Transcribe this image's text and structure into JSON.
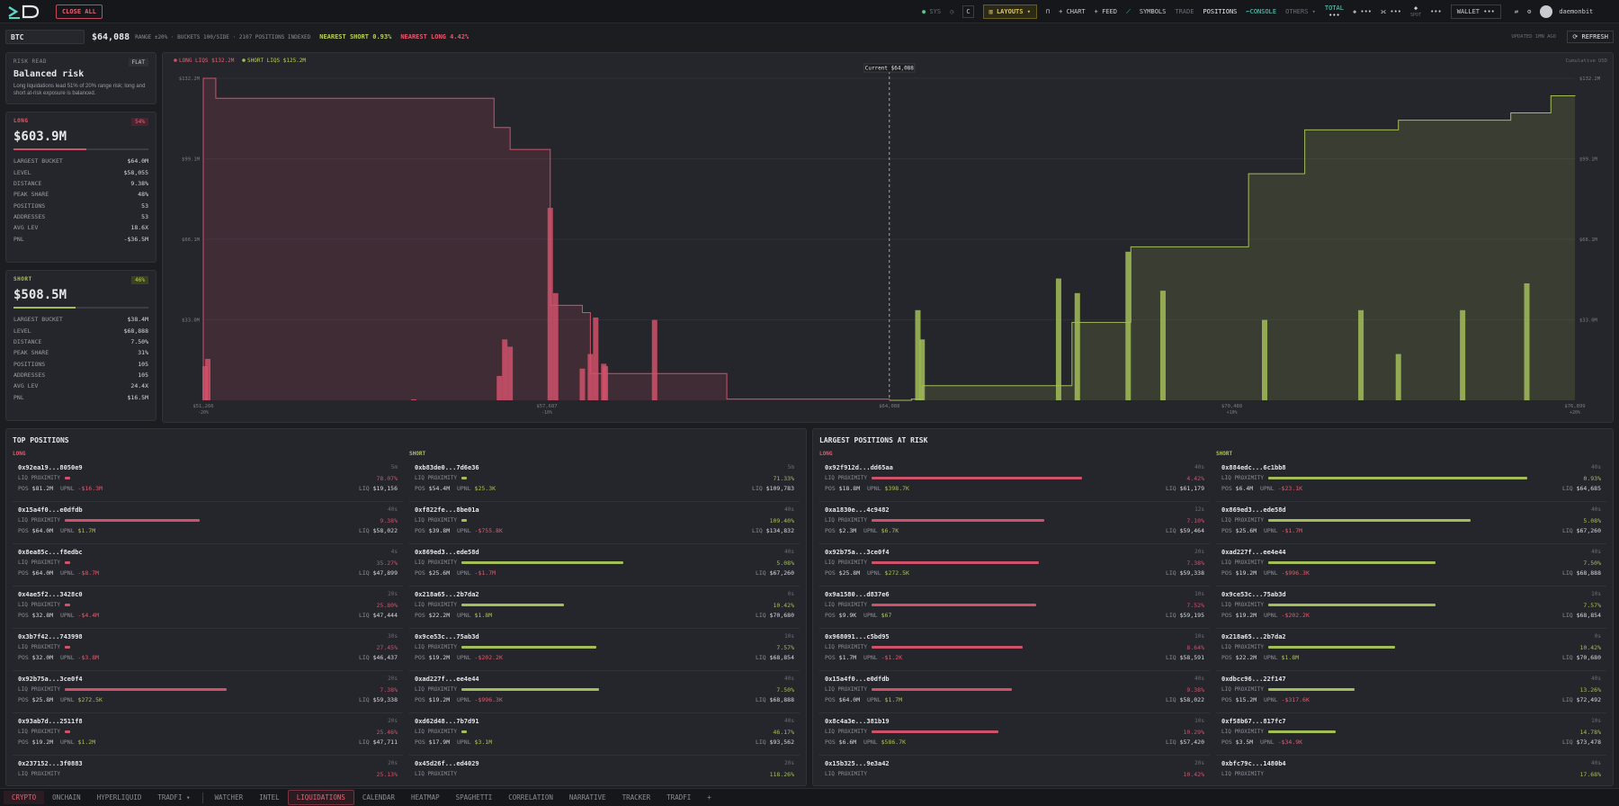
{
  "topbar": {
    "close_all": "CLOSE ALL",
    "sys": "SYS",
    "layouts": "LAYOUTS",
    "chart": "+ CHART",
    "feed": "+ FEED",
    "symbols": "SYMBOLS",
    "trade": "TRADE",
    "positions": "POSITIONS",
    "console": "CONSOLE",
    "others": "OTHERS",
    "total": "TOTAL",
    "total_val": "•••",
    "val_a": "•••",
    "val_b": "•••",
    "spot": "SPOT",
    "wallet": "WALLET •••",
    "user": "daemonbit"
  },
  "symbar": {
    "symbol": "BTC",
    "price": "$64,088",
    "info": "RANGE ±20% · BUCKETS 100/SIDE · 2107 POSITIONS INDEXED",
    "nearest_short": "NEAREST SHORT 0.93%",
    "nearest_long": "NEAREST LONG 4.42%",
    "updated": "UPDATED 1MN AGO",
    "refresh": "REFRESH"
  },
  "risk": {
    "label": "RISK READ",
    "flat": "FLAT",
    "title": "Balanced risk",
    "desc": "Long liquidations lead 51% of 20% range risk; long and short at-risk exposure is balanced."
  },
  "long": {
    "label": "LONG",
    "share": "54%",
    "total": "$603.9M",
    "rows": [
      [
        "LARGEST BUCKET",
        "$64.0M"
      ],
      [
        "LEVEL",
        "$58,055"
      ],
      [
        "DISTANCE",
        "9.38%"
      ],
      [
        "PEAK SHARE",
        "48%"
      ],
      [
        "POSITIONS",
        "53"
      ],
      [
        "ADDRESSES",
        "53"
      ],
      [
        "AVG LEV",
        "18.6X"
      ],
      [
        "PNL",
        "-$36.5M"
      ]
    ]
  },
  "short": {
    "label": "SHORT",
    "share": "46%",
    "total": "$508.5M",
    "rows": [
      [
        "LARGEST BUCKET",
        "$38.4M"
      ],
      [
        "LEVEL",
        "$68,888"
      ],
      [
        "DISTANCE",
        "7.50%"
      ],
      [
        "PEAK SHARE",
        "31%"
      ],
      [
        "POSITIONS",
        "105"
      ],
      [
        "ADDRESSES",
        "105"
      ],
      [
        "AVG LEV",
        "24.4X"
      ],
      [
        "PNL",
        "$16.5M"
      ]
    ]
  },
  "chart_data": {
    "type": "area",
    "legend": [
      "LONG LIQS $132.2M",
      "SHORT LIQS $125.2M"
    ],
    "cum_label": "Cumulative USD",
    "current_label": "Current $64,088",
    "ylim": [
      0,
      132.2
    ],
    "yticks": [
      "$33.0M",
      "$66.1M",
      "$99.1M",
      "$132.2M"
    ],
    "xticks": [
      [
        "$51,266",
        "-20%"
      ],
      [
        "$57,687",
        "-10%"
      ],
      [
        "$64,088",
        ""
      ],
      [
        "$70,488",
        "+10%"
      ],
      [
        "$76,899",
        "+20%"
      ]
    ],
    "long_steps": [
      [
        51.266,
        132.2
      ],
      [
        51.5,
        124
      ],
      [
        56.6,
        124
      ],
      [
        56.7,
        112
      ],
      [
        57.0,
        103
      ],
      [
        57.7,
        103
      ],
      [
        57.75,
        39
      ],
      [
        58.2,
        39
      ],
      [
        58.35,
        36
      ],
      [
        58.5,
        11
      ],
      [
        61.0,
        11
      ],
      [
        61.05,
        0.5
      ],
      [
        64.088,
        0
      ]
    ],
    "short_steps": [
      [
        64.088,
        0
      ],
      [
        64.5,
        0.5
      ],
      [
        64.7,
        6
      ],
      [
        67.3,
        6
      ],
      [
        67.5,
        32
      ],
      [
        68.5,
        32
      ],
      [
        68.6,
        63
      ],
      [
        70.7,
        63
      ],
      [
        70.8,
        93
      ],
      [
        71.8,
        93
      ],
      [
        71.85,
        111
      ],
      [
        73.5,
        111
      ],
      [
        73.6,
        115
      ],
      [
        75.6,
        115
      ],
      [
        75.7,
        118
      ],
      [
        76.3,
        118
      ],
      [
        76.45,
        125
      ],
      [
        76.899,
        125.2
      ]
    ],
    "long_bars": [
      [
        51.35,
        17
      ],
      [
        51.3,
        14
      ],
      [
        55.2,
        0.4
      ],
      [
        56.8,
        10
      ],
      [
        56.9,
        25
      ],
      [
        57.0,
        22
      ],
      [
        57.75,
        79
      ],
      [
        57.85,
        44
      ],
      [
        58.35,
        13
      ],
      [
        58.5,
        19
      ],
      [
        58.6,
        34
      ],
      [
        58.75,
        15
      ],
      [
        58.78,
        14
      ],
      [
        59.7,
        33
      ]
    ],
    "short_bars": [
      [
        64.62,
        37
      ],
      [
        64.7,
        25
      ],
      [
        67.25,
        50
      ],
      [
        67.6,
        44
      ],
      [
        68.55,
        61
      ],
      [
        69.2,
        45
      ],
      [
        71.1,
        33
      ],
      [
        72.9,
        37
      ],
      [
        73.6,
        19
      ],
      [
        74.8,
        37
      ],
      [
        76.0,
        48
      ]
    ]
  },
  "top_positions": {
    "title": "TOP POSITIONS",
    "long_label": "LONG",
    "short_label": "SHORT",
    "long": [
      [
        "0x92ea19...8050e9",
        "5m",
        "78.07%",
        "$81.2M",
        "-$16.3M",
        "$19,156",
        2
      ],
      [
        "0x15a4f0...e0dfdb",
        "40s",
        "9.38%",
        "$64.0M",
        "$1.7M",
        "$58,022",
        50
      ],
      [
        "0x8ea85c...f8edbc",
        "4s",
        "35.27%",
        "$64.0M",
        "-$8.7M",
        "$47,899",
        2
      ],
      [
        "0x4ae5f2...3428c0",
        "20s",
        "25.80%",
        "$32.8M",
        "-$4.4M",
        "$47,444",
        2
      ],
      [
        "0x3b7f42...743998",
        "30s",
        "27.45%",
        "$32.0M",
        "-$3.8M",
        "$46,437",
        2
      ],
      [
        "0x92b75a...3ce0f4",
        "20s",
        "7.38%",
        "$25.8M",
        "$272.5K",
        "$59,338",
        60
      ],
      [
        "0x93ab7d...2511f8",
        "20s",
        "25.46%",
        "$19.2M",
        "$1.2M",
        "$47,711",
        2
      ],
      [
        "0x237152...3f0883",
        "20s",
        "25.13%",
        "",
        "",
        ""
      ]
    ],
    "short": [
      [
        "0xb83de0...7d6e36",
        "5m",
        "71.33%",
        "$54.4M",
        "$25.3K",
        "$109,783",
        2
      ],
      [
        "0xf822fe...8be01a",
        "40s",
        "109.40%",
        "$39.8M",
        "-$755.8K",
        "$134,832",
        2
      ],
      [
        "0x869ed3...ede58d",
        "40s",
        "5.08%",
        "$25.6M",
        "-$1.7M",
        "$67,260",
        60
      ],
      [
        "0x218a65...2b7da2",
        "0s",
        "10.42%",
        "$22.2M",
        "$1.8M",
        "$70,680",
        38
      ],
      [
        "0x9ce53c...75ab3d",
        "10s",
        "7.57%",
        "$19.2M",
        "-$202.2K",
        "$68,854",
        50
      ],
      [
        "0xad227f...ee4e44",
        "40s",
        "7.50%",
        "$19.2M",
        "-$996.3K",
        "$68,888",
        51
      ],
      [
        "0xd62d48...7b7d91",
        "40s",
        "46.17%",
        "$17.9M",
        "$3.1M",
        "$93,562",
        2
      ],
      [
        "0x45d26f...ed4029",
        "20s",
        "118.26%",
        "",
        "",
        ""
      ]
    ]
  },
  "largest_at_risk": {
    "title": "LARGEST POSITIONS AT RISK",
    "long_label": "LONG",
    "short_label": "SHORT",
    "long": [
      [
        "0x92f912d...dd65aa",
        "40s",
        "4.42%",
        "$18.8M",
        "$398.7K",
        "$61,179",
        78
      ],
      [
        "0xa1830e...4c9482",
        "12s",
        "7.10%",
        "$2.3M",
        "$6.7K",
        "$59,464",
        64
      ],
      [
        "0x92b75a...3ce0f4",
        "20s",
        "7.38%",
        "$25.8M",
        "$272.5K",
        "$59,338",
        62
      ],
      [
        "0x9a1580...d837e6",
        "10s",
        "7.52%",
        "$9.9K",
        "$67",
        "$59,195",
        61
      ],
      [
        "0x968091...c5bd95",
        "10s",
        "8.64%",
        "$1.7M",
        "-$1.2K",
        "$58,591",
        56
      ],
      [
        "0x15a4f0...e0dfdb",
        "40s",
        "9.38%",
        "$64.0M",
        "$1.7M",
        "$58,022",
        52
      ],
      [
        "0x8c4a3e...381b19",
        "10s",
        "10.29%",
        "$6.6M",
        "$586.7K",
        "$57,420",
        47
      ],
      [
        "0x15b325...9e3a42",
        "20s",
        "10.42%",
        "",
        "",
        ""
      ]
    ],
    "short": [
      [
        "0x884edc...6c1bb8",
        "40s",
        "0.93%",
        "$6.4M",
        "-$23.1K",
        "$64,685",
        96
      ],
      [
        "0x869ed3...ede58d",
        "40s",
        "5.08%",
        "$25.6M",
        "-$1.7M",
        "$67,260",
        75
      ],
      [
        "0xad227f...ee4e44",
        "40s",
        "7.50%",
        "$19.2M",
        "-$996.3K",
        "$68,888",
        62
      ],
      [
        "0x9ce53c...75ab3d",
        "10s",
        "7.57%",
        "$19.2M",
        "-$202.2K",
        "$68,854",
        62
      ],
      [
        "0x218a65...2b7da2",
        "0s",
        "10.42%",
        "$22.2M",
        "$1.8M",
        "$70,680",
        47
      ],
      [
        "0xdbcc96...22f147",
        "40s",
        "13.26%",
        "$15.2M",
        "-$317.6K",
        "$72,492",
        32
      ],
      [
        "0xf58b67...817fc7",
        "10s",
        "14.78%",
        "$3.5M",
        "-$34.9K",
        "$73,478",
        25
      ],
      [
        "0xbfc79c...1480b4",
        "40s",
        "17.68%",
        "",
        "",
        ""
      ]
    ]
  },
  "tabs": [
    "CRYPTO",
    "ONCHAIN",
    "HYPERLIQUID",
    "TRADFI",
    "WATCHER",
    "INTEL",
    "LIQUIDATIONS",
    "CALENDAR",
    "HEATMAP",
    "SPAGHETTI",
    "CORRELATION",
    "NARRATIVE",
    "TRACKER",
    "TRADFI",
    "+"
  ],
  "colors": {
    "long": "#d0516a",
    "short": "#a3bd58",
    "bg": "#1c1d21"
  }
}
